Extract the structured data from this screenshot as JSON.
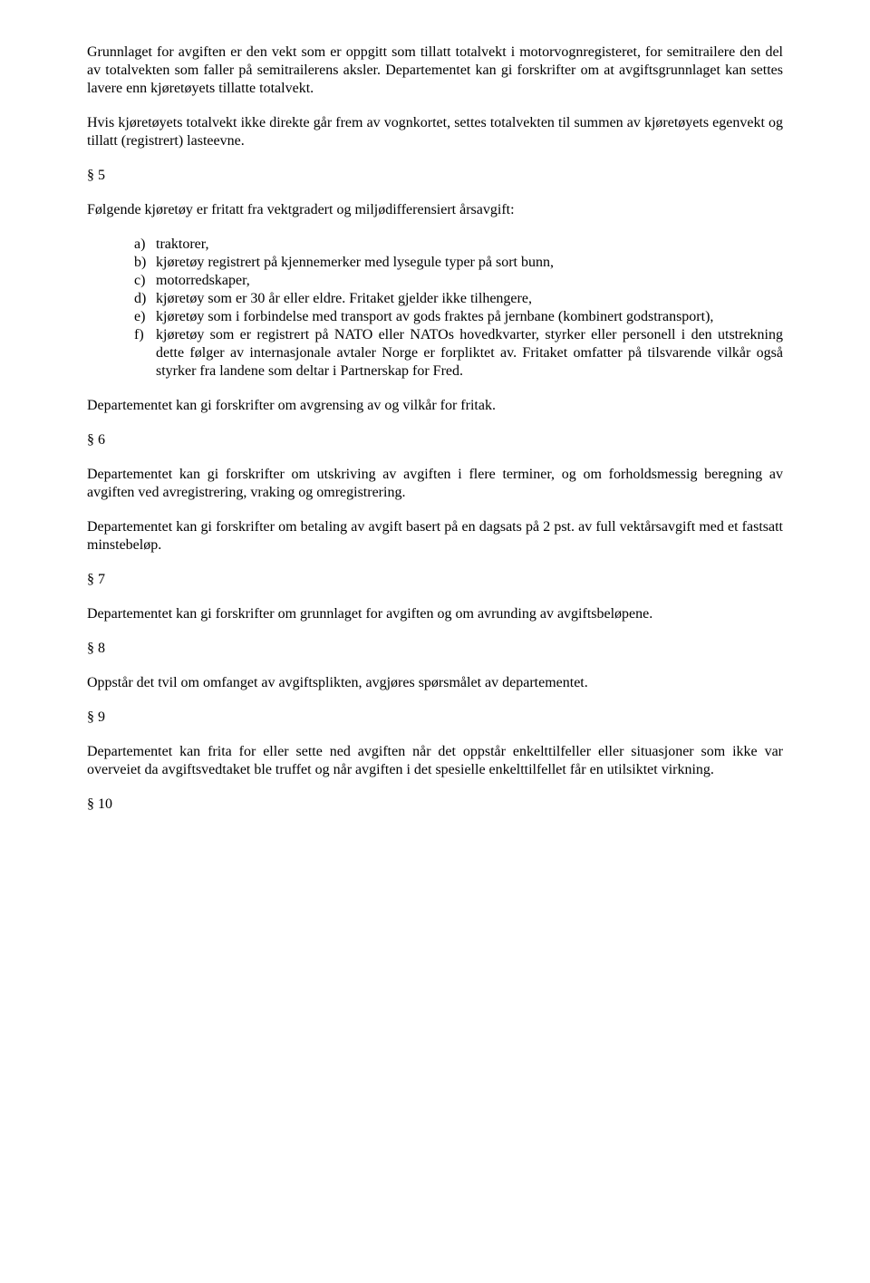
{
  "p1": "Grunnlaget for avgiften er den vekt som er oppgitt som tillatt totalvekt i motorvognregisteret, for semitrailere den del av totalvekten som faller på semitrailerens aksler. Departementet kan gi forskrifter om at avgiftsgrunnlaget kan settes lavere enn kjøretøyets tillatte totalvekt.",
  "p2": "Hvis kjøretøyets totalvekt ikke direkte går frem av vognkortet, settes totalvekten til summen av kjøretøyets egenvekt og tillatt (registrert) lasteevne.",
  "s5": "§ 5",
  "p3": "Følgende kjøretøy er fritatt fra vektgradert og miljødifferensiert årsavgift:",
  "list": {
    "a": {
      "marker": "a)",
      "text": "traktorer,"
    },
    "b": {
      "marker": "b)",
      "text": "kjøretøy registrert på kjennemerker med lysegule typer på sort bunn,"
    },
    "c": {
      "marker": "c)",
      "text": "motorredskaper,"
    },
    "d": {
      "marker": "d)",
      "text": "kjøretøy som er 30 år eller eldre. Fritaket gjelder ikke tilhengere,"
    },
    "e": {
      "marker": "e)",
      "text": "kjøretøy som i forbindelse med transport av gods fraktes på jernbane (kombinert godstransport),"
    },
    "f": {
      "marker": "f)",
      "text": "kjøretøy som er registrert på NATO eller NATOs hovedkvarter, styrker eller personell i den utstrekning dette følger av internasjonale avtaler Norge er forpliktet av. Fritaket omfatter på tilsvarende vilkår også styrker fra landene som deltar i Partnerskap for Fred."
    }
  },
  "p4": "Departementet kan gi forskrifter om avgrensing av og vilkår for fritak.",
  "s6": "§ 6",
  "p5": "Departementet kan gi forskrifter om utskriving av avgiften i flere terminer, og om forholdsmessig beregning av avgiften ved avregistrering, vraking og omregistrering.",
  "p6": "Departementet kan gi forskrifter om betaling av avgift basert på en dagsats på 2 pst. av full vektårsavgift med et fastsatt minstebeløp.",
  "s7": "§ 7",
  "p7": "Departementet kan gi forskrifter om grunnlaget for avgiften og om avrunding av avgiftsbeløpene.",
  "s8": "§ 8",
  "p8": "Oppstår det tvil om omfanget av avgiftsplikten, avgjøres spørsmålet av departementet.",
  "s9": "§ 9",
  "p9": "Departementet kan frita for eller sette ned avgiften når det oppstår enkelttilfeller eller situasjoner som ikke var overveiet da avgiftsvedtaket ble truffet og når avgiften i det spesielle enkelttilfellet får en utilsiktet virkning.",
  "s10": "§ 10"
}
